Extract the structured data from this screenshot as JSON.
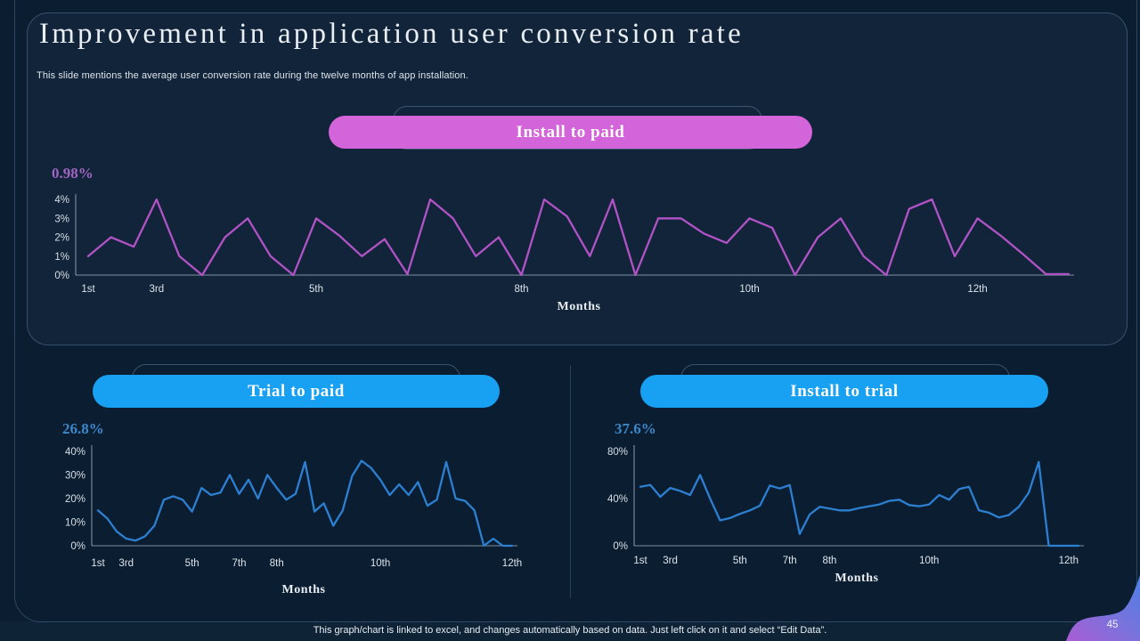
{
  "slide": {
    "title": "Improvement in application user conversion rate",
    "subtitle": "This slide mentions the average user conversion rate during the twelve months of app installation.",
    "footer_note": "This graph/chart is linked to excel, and changes automatically based on data. Just left click on it and select “Edit Data”.",
    "page_number": "45"
  },
  "chart_data": [
    {
      "type": "line",
      "title": "Install to paid",
      "headline_value": "0.98%",
      "xlabel": "Months",
      "x_tick_labels": [
        "1st",
        "3rd",
        "5th",
        "8th",
        "10th",
        "12th"
      ],
      "x_tick_indices": [
        0,
        3,
        10,
        19,
        29,
        39
      ],
      "y_ticks": [
        0,
        1,
        2,
        3,
        4
      ],
      "y_tick_labels": [
        "0%",
        "1%",
        "2%",
        "3%",
        "4%"
      ],
      "ylim": [
        0,
        4
      ],
      "values": [
        1.0,
        2.0,
        1.5,
        4.0,
        1.0,
        0.0,
        2.0,
        3.0,
        1.0,
        0.0,
        3.0,
        2.1,
        1.0,
        1.9,
        0.05,
        4.0,
        3.0,
        1.0,
        2.0,
        0.0,
        4.0,
        3.1,
        1.0,
        4.0,
        0.0,
        3.0,
        3.0,
        2.2,
        1.7,
        3.0,
        2.5,
        0.0,
        2.0,
        3.0,
        1.0,
        0.0,
        3.5,
        4.0,
        1.0,
        3.0,
        2.1,
        1.1,
        0.05,
        0.05
      ],
      "line_color": "#b153c6",
      "pill_color": "#d464da",
      "value_color": "#a064c2"
    },
    {
      "type": "line",
      "title": "Trial to paid",
      "headline_value": "26.8%",
      "xlabel": "Months",
      "x_tick_labels": [
        "1st",
        "3rd",
        "5th",
        "7th",
        "8th",
        "10th",
        "12th"
      ],
      "x_tick_indices": [
        0,
        3,
        10,
        15,
        19,
        30,
        44
      ],
      "y_ticks": [
        0,
        10,
        20,
        30,
        40
      ],
      "y_tick_labels": [
        "0%",
        "10%",
        "20%",
        "30%",
        "40%"
      ],
      "ylim": [
        0,
        40
      ],
      "values": [
        15,
        11.5,
        6,
        3,
        2.2,
        4,
        8.5,
        19.5,
        21,
        19.5,
        14.5,
        24.5,
        21.5,
        22.5,
        30,
        22,
        28,
        20,
        30,
        24.5,
        19.5,
        22,
        35.5,
        14.5,
        18,
        8.5,
        15,
        29.5,
        36,
        33,
        28,
        21.5,
        26,
        21.5,
        27,
        17,
        19.5,
        35.5,
        20,
        19,
        15,
        0,
        3,
        0,
        0
      ],
      "line_color": "#2d7fd1",
      "pill_color": "#18a0f2",
      "value_color": "#3c87c9"
    },
    {
      "type": "line",
      "title": "Install to trial",
      "headline_value": "37.6%",
      "xlabel": "Months",
      "x_tick_labels": [
        "1st",
        "3rd",
        "5th",
        "7th",
        "8th",
        "10th",
        "12th"
      ],
      "x_tick_indices": [
        0,
        3,
        10,
        15,
        19,
        29,
        43
      ],
      "y_ticks": [
        0,
        40,
        80
      ],
      "y_tick_labels": [
        "0%",
        "40%",
        "80%"
      ],
      "ylim": [
        0,
        80
      ],
      "values": [
        50,
        51.5,
        41.5,
        49,
        46.5,
        43,
        60,
        40,
        21.5,
        23.5,
        27,
        30,
        34,
        51,
        48.5,
        51.5,
        10,
        26.5,
        33,
        31.5,
        30,
        30,
        32,
        33.5,
        35,
        38,
        39,
        34.5,
        33.5,
        35,
        43,
        39,
        48,
        50,
        30,
        28,
        24,
        26,
        33,
        45,
        71,
        0,
        0,
        0,
        0
      ],
      "line_color": "#2d7fd1",
      "pill_color": "#18a0f2",
      "value_color": "#3c87c9"
    }
  ]
}
